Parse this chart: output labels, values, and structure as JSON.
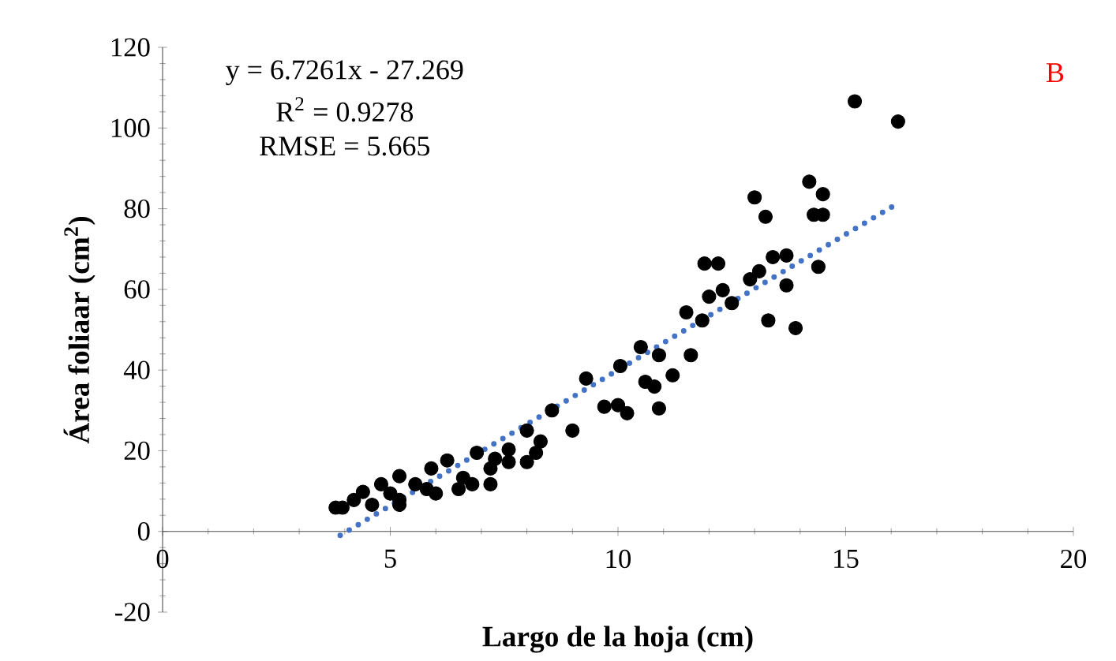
{
  "chart_data": {
    "type": "scatter",
    "xlabel": "Largo de la hoja (cm)",
    "ylabel": "Área foliaar (cm$^{2}$)",
    "xlim": [
      0,
      20
    ],
    "ylim": [
      -20,
      120
    ],
    "xticks": [
      0,
      5,
      10,
      15,
      20
    ],
    "yticks": [
      -20,
      0,
      20,
      40,
      60,
      80,
      100,
      120
    ],
    "grid": false,
    "annotations": [
      "y = 6.7261x - 27.269",
      "R$^{2}$ = 0.9278",
      "RMSE = 5.665",
      "B"
    ],
    "series": [
      {
        "marker": "circle",
        "color": "#000000",
        "x": [
          3.8,
          3.95,
          4.2,
          4.4,
          4.6,
          4.8,
          5.0,
          5.2,
          5.2,
          5.2,
          5.55,
          5.8,
          5.9,
          6.0,
          6.25,
          6.5,
          6.6,
          6.8,
          6.9,
          7.2,
          7.2,
          7.3,
          7.6,
          7.6,
          8.0,
          8.0,
          8.2,
          8.3,
          8.55,
          9.0,
          9.3,
          9.7,
          10.0,
          10.05,
          10.2,
          10.5,
          10.6,
          10.8,
          10.9,
          10.9,
          11.2,
          11.5,
          11.6,
          11.85,
          11.9,
          12.0,
          12.2,
          12.3,
          12.5,
          12.9,
          13.0,
          13.1,
          13.24,
          13.3,
          13.4,
          13.7,
          13.7,
          13.9,
          14.2,
          14.3,
          14.4,
          14.5,
          14.5,
          15.2,
          16.15
        ],
        "values": [
          5.9,
          5.9,
          7.8,
          9.8,
          6.6,
          11.7,
          9.4,
          13.7,
          7.8,
          6.6,
          11.7,
          10.5,
          15.6,
          9.4,
          17.6,
          10.5,
          13.3,
          11.7,
          19.5,
          15.6,
          11.7,
          18,
          20.3,
          17.2,
          25,
          17.2,
          19.5,
          22.3,
          30,
          25,
          37.9,
          30.9,
          31.3,
          41,
          29.3,
          45.7,
          37.1,
          35.9,
          43.7,
          30.5,
          38.7,
          54.3,
          43.7,
          52.3,
          66.4,
          58.2,
          66.4,
          59.8,
          56.6,
          62.5,
          82.8,
          64.5,
          78,
          52.3,
          68,
          68.4,
          61,
          50.4,
          86.7,
          78.5,
          65.6,
          83.6,
          78.5,
          106.6,
          101.6
        ]
      },
      {
        "type": "line",
        "line_style": "dotted",
        "marker": "none",
        "color": "#4472c4",
        "x": [
          3.9,
          16.2
        ],
        "values": [
          -1.0,
          81.7
        ]
      }
    ]
  }
}
